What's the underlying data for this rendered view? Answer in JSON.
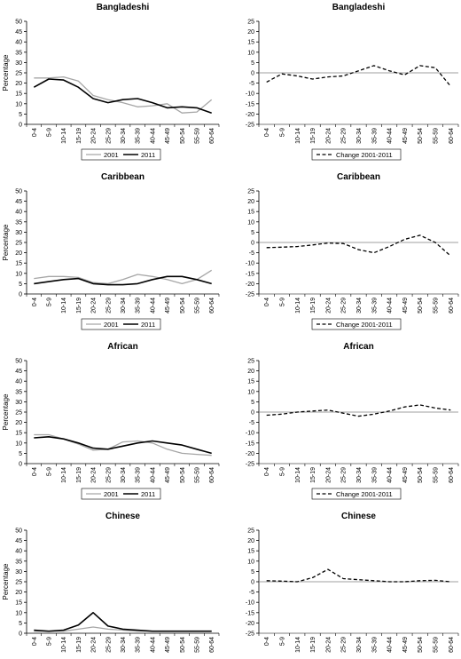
{
  "age_groups": [
    "0-4",
    "5-9",
    "10-14",
    "15-19",
    "20-24",
    "25-29",
    "30-34",
    "35-39",
    "40-44",
    "45-49",
    "50-54",
    "55-59",
    "60-64"
  ],
  "ylabel": "Percentage",
  "legend_levels": {
    "y2001": "2001",
    "y2011": "2011",
    "change": "Change 2001-2011"
  },
  "colors": {
    "y2001": "#a6a6a6",
    "y2011": "#000000",
    "change": "#000000"
  },
  "chart_data": [
    {
      "type": "line",
      "title": "Bangladeshi",
      "ylim": [
        0,
        50
      ],
      "yticks": [
        0,
        5,
        10,
        15,
        20,
        25,
        30,
        35,
        40,
        45,
        50
      ],
      "series": [
        {
          "name": "2001",
          "values": [
            22.5,
            22.5,
            23,
            21,
            14,
            12,
            10.5,
            8.5,
            9,
            10,
            5.5,
            6,
            12
          ]
        },
        {
          "name": "2011",
          "values": [
            18,
            22,
            21.5,
            18,
            12.5,
            10.5,
            12,
            12.5,
            10.5,
            8,
            8.5,
            8,
            5.5
          ]
        }
      ]
    },
    {
      "type": "line",
      "title": "Bangladeshi",
      "ylim": [
        -25,
        25
      ],
      "yticks": [
        -25,
        -20,
        -15,
        -10,
        -5,
        0,
        5,
        10,
        15,
        20,
        25
      ],
      "series": [
        {
          "name": "Change 2001-2011",
          "values": [
            -4.5,
            -0.5,
            -1.5,
            -3,
            -2,
            -1.5,
            1,
            3.5,
            1,
            -1,
            3.5,
            2.5,
            -6.5
          ]
        }
      ]
    },
    {
      "type": "line",
      "title": "Caribbean",
      "ylim": [
        0,
        50
      ],
      "yticks": [
        0,
        5,
        10,
        15,
        20,
        25,
        30,
        35,
        40,
        45,
        50
      ],
      "series": [
        {
          "name": "2001",
          "values": [
            7.5,
            8.5,
            8.5,
            8,
            5.5,
            5,
            7,
            9.5,
            8.5,
            7,
            5,
            7,
            11.5
          ]
        },
        {
          "name": "2011",
          "values": [
            5,
            6,
            7,
            7.5,
            5,
            4.5,
            4.5,
            5,
            7,
            8.5,
            8.5,
            7,
            5
          ]
        }
      ]
    },
    {
      "type": "line",
      "title": "Caribbean",
      "ylim": [
        -25,
        25
      ],
      "yticks": [
        -25,
        -20,
        -15,
        -10,
        -5,
        0,
        5,
        10,
        15,
        20,
        25
      ],
      "series": [
        {
          "name": "Change 2001-2011",
          "values": [
            -2.5,
            -2.3,
            -2,
            -1.2,
            -0.3,
            -0.5,
            -3.5,
            -5,
            -2,
            1.5,
            3.5,
            0,
            -6.5
          ]
        }
      ]
    },
    {
      "type": "line",
      "title": "African",
      "ylim": [
        0,
        50
      ],
      "yticks": [
        0,
        5,
        10,
        15,
        20,
        25,
        30,
        35,
        40,
        45,
        50
      ],
      "series": [
        {
          "name": "2001",
          "values": [
            14,
            14,
            12,
            9.5,
            6.5,
            7,
            10.5,
            11,
            10,
            7,
            5,
            4.5,
            4
          ]
        },
        {
          "name": "2011",
          "values": [
            12.5,
            13,
            12,
            10,
            7.5,
            7,
            8.5,
            10,
            11,
            10,
            9,
            7,
            5
          ]
        }
      ]
    },
    {
      "type": "line",
      "title": "African",
      "ylim": [
        -25,
        25
      ],
      "yticks": [
        -25,
        -20,
        -15,
        -10,
        -5,
        0,
        5,
        10,
        15,
        20,
        25
      ],
      "series": [
        {
          "name": "Change 2001-2011",
          "values": [
            -1.5,
            -1,
            0,
            0.5,
            1,
            -0.5,
            -2,
            -1,
            0.5,
            2.5,
            3.5,
            2,
            1
          ]
        }
      ]
    },
    {
      "type": "line",
      "title": "Chinese",
      "ylim": [
        0,
        50
      ],
      "yticks": [
        0,
        5,
        10,
        15,
        20,
        25,
        30,
        35,
        40,
        45,
        50
      ],
      "series": [
        {
          "name": "2001",
          "values": [
            1,
            1,
            1,
            2,
            3,
            2,
            1.5,
            1,
            1,
            1,
            1,
            1,
            1
          ]
        },
        {
          "name": "2011",
          "values": [
            1.5,
            1,
            1.5,
            4,
            10,
            3.5,
            2,
            1.5,
            1,
            1,
            1,
            1,
            1
          ]
        }
      ]
    },
    {
      "type": "line",
      "title": "Chinese",
      "ylim": [
        -25,
        25
      ],
      "yticks": [
        -25,
        -20,
        -15,
        -10,
        -5,
        0,
        5,
        10,
        15,
        20,
        25
      ],
      "series": [
        {
          "name": "Change 2001-2011",
          "values": [
            0.5,
            0.3,
            0,
            2,
            6,
            1.5,
            1,
            0.5,
            0,
            0,
            0.5,
            0.7,
            0
          ]
        }
      ]
    }
  ]
}
